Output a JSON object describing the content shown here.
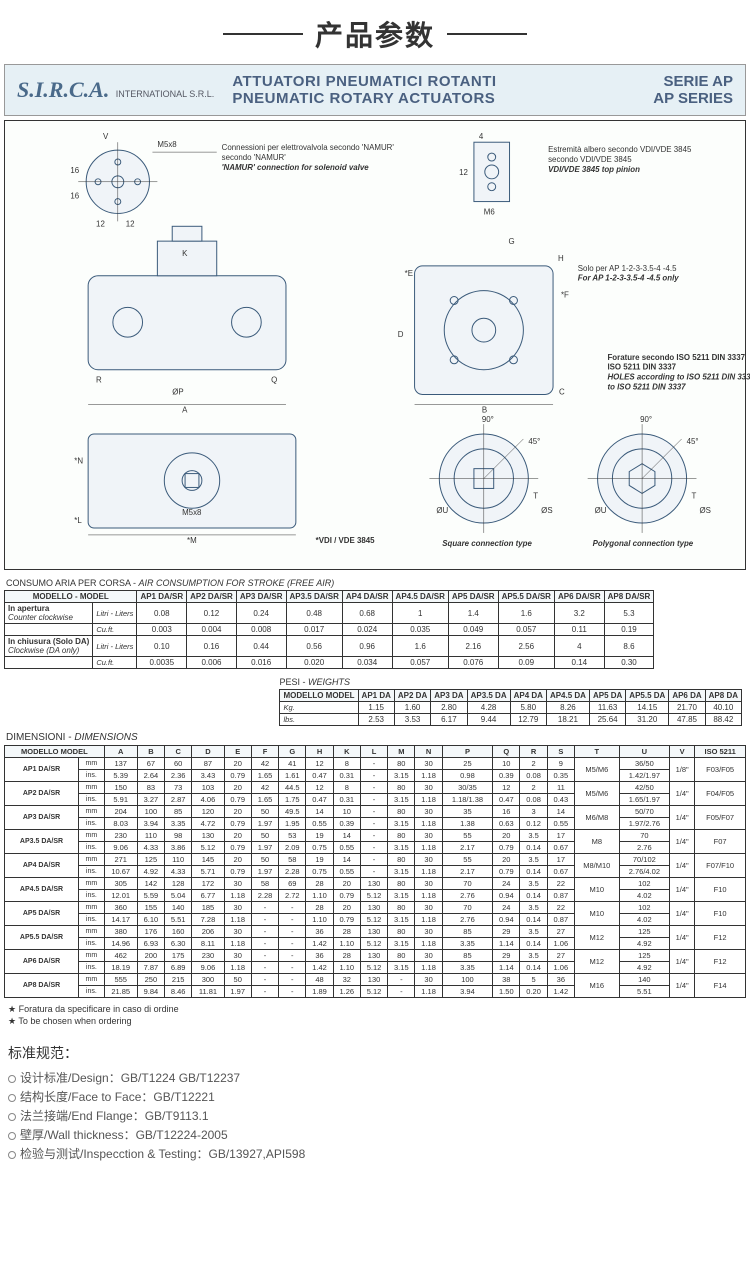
{
  "page_title": "产品参数",
  "header": {
    "logo": "S.I.R.C.A.",
    "logo_sub": "INTERNATIONAL S.R.L.",
    "title_it": "ATTUATORI PNEUMATICI ROTANTI",
    "title_en": "PNEUMATIC ROTARY ACTUATORS",
    "series_it": "SERIE AP",
    "series_en": "AP SERIES"
  },
  "drawing_labels": {
    "namur_it": "Connessioni per elettrovalvola secondo 'NAMUR'",
    "namur_en": "'NAMUR' connection for solenoid valve",
    "vdi_it": "Estremità albero secondo VDI/VDE 3845",
    "vdi_en": "VDI/VDE 3845 top pinion",
    "solo_it": "Solo per AP 1-2-3-3.5-4 -4.5",
    "solo_en": "For AP 1-2-3-3.5-4 -4.5 only",
    "holes_it": "Forature secondo ISO 5211 DIN 3337",
    "holes_en": "HOLES according to ISO 5211 DIN 3337",
    "vdi_vde": "*VDI / VDE 3845",
    "square": "Square connection type",
    "polygonal": "Polygonal connection type",
    "m5x8": "M5x8",
    "m6": "M6"
  },
  "air_section_label_it": "CONSUMO ARIA PER CORSA - ",
  "air_section_label_en": "AIR CONSUMPTION FOR STROKE (FREE AIR)",
  "air_table": {
    "head_model": "MODELLO - MODEL",
    "cols": [
      "AP1 DA/SR",
      "AP2 DA/SR",
      "AP3 DA/SR",
      "AP3.5 DA/SR",
      "AP4 DA/SR",
      "AP4.5 DA/SR",
      "AP5 DA/SR",
      "AP5.5 DA/SR",
      "AP6 DA/SR",
      "AP8 DA/SR"
    ],
    "rows": [
      {
        "label": "In apertura",
        "sub": "Counter clockwise",
        "unit": "Litri - Liters",
        "vals": [
          "0.08",
          "0.12",
          "0.24",
          "0.48",
          "0.68",
          "1",
          "1.4",
          "1.6",
          "3.2",
          "5.3"
        ]
      },
      {
        "label": "",
        "sub": "",
        "unit": "Cu.ft.",
        "vals": [
          "0.003",
          "0.004",
          "0.008",
          "0.017",
          "0.024",
          "0.035",
          "0.049",
          "0.057",
          "0.11",
          "0.19"
        ]
      },
      {
        "label": "In chiusura (Solo DA)",
        "sub": "Clockwise (DA only)",
        "unit": "Litri - Liters",
        "vals": [
          "0.10",
          "0.16",
          "0.44",
          "0.56",
          "0.96",
          "1.6",
          "2.16",
          "2.56",
          "4",
          "8.6"
        ]
      },
      {
        "label": "",
        "sub": "",
        "unit": "Cu.ft.",
        "vals": [
          "0.0035",
          "0.006",
          "0.016",
          "0.020",
          "0.034",
          "0.057",
          "0.076",
          "0.09",
          "0.14",
          "0.30"
        ]
      }
    ]
  },
  "weights_label_it": "PESI - ",
  "weights_label_en": "WEIGHTS",
  "weights_table": {
    "head_model": "MODELLO MODEL",
    "cols": [
      "AP1 DA",
      "AP2 DA",
      "AP3 DA",
      "AP3.5 DA",
      "AP4 DA",
      "AP4.5 DA",
      "AP5 DA",
      "AP5.5 DA",
      "AP6 DA",
      "AP8 DA"
    ],
    "rows": [
      {
        "unit": "Kg.",
        "vals": [
          "1.15",
          "1.60",
          "2.80",
          "4.28",
          "5.80",
          "8.26",
          "11.63",
          "14.15",
          "21.70",
          "40.10"
        ]
      },
      {
        "unit": "lbs.",
        "vals": [
          "2.53",
          "3.53",
          "6.17",
          "9.44",
          "12.79",
          "18.21",
          "25.64",
          "31.20",
          "47.85",
          "88.42"
        ]
      }
    ]
  },
  "dim_label_it": "DIMENSIONI - ",
  "dim_label_en": "DIMENSIONS",
  "dim_table": {
    "head_model": "MODELLO MODEL",
    "cols": [
      "A",
      "B",
      "C",
      "D",
      "E",
      "F",
      "G",
      "H",
      "K",
      "L",
      "M",
      "N",
      "P",
      "Q",
      "R",
      "S",
      "T",
      "U",
      "V",
      "ISO 5211"
    ],
    "rows": [
      {
        "model": "AP1 DA/SR",
        "mm": [
          "137",
          "67",
          "60",
          "87",
          "20",
          "42",
          "41",
          "12",
          "8",
          "-",
          "80",
          "30",
          "25",
          "10",
          "2",
          "9",
          "M5/M6",
          "36/50",
          "1/8\"",
          "F03/F05"
        ],
        "ins": [
          "5.39",
          "2.64",
          "2.36",
          "3.43",
          "0.79",
          "1.65",
          "1.61",
          "0.47",
          "0.31",
          "-",
          "3.15",
          "1.18",
          "0.98",
          "0.39",
          "0.08",
          "0.35",
          "",
          "1.42/1.97",
          "",
          ""
        ]
      },
      {
        "model": "AP2 DA/SR",
        "mm": [
          "150",
          "83",
          "73",
          "103",
          "20",
          "42",
          "44.5",
          "12",
          "8",
          "-",
          "80",
          "30",
          "30/35",
          "12",
          "2",
          "11",
          "M5/M6",
          "42/50",
          "1/4\"",
          "F04/F05"
        ],
        "ins": [
          "5.91",
          "3.27",
          "2.87",
          "4.06",
          "0.79",
          "1.65",
          "1.75",
          "0.47",
          "0.31",
          "-",
          "3.15",
          "1.18",
          "1.18/1.38",
          "0.47",
          "0.08",
          "0.43",
          "",
          "1.65/1.97",
          "",
          ""
        ]
      },
      {
        "model": "AP3 DA/SR",
        "mm": [
          "204",
          "100",
          "85",
          "120",
          "20",
          "50",
          "49.5",
          "14",
          "10",
          "-",
          "80",
          "30",
          "35",
          "16",
          "3",
          "14",
          "M6/M8",
          "50/70",
          "1/4\"",
          "F05/F07"
        ],
        "ins": [
          "8.03",
          "3.94",
          "3.35",
          "4.72",
          "0.79",
          "1.97",
          "1.95",
          "0.55",
          "0.39",
          "-",
          "3.15",
          "1.18",
          "1.38",
          "0.63",
          "0.12",
          "0.55",
          "",
          "1.97/2.76",
          "",
          ""
        ]
      },
      {
        "model": "AP3.5 DA/SR",
        "mm": [
          "230",
          "110",
          "98",
          "130",
          "20",
          "50",
          "53",
          "19",
          "14",
          "-",
          "80",
          "30",
          "55",
          "20",
          "3.5",
          "17",
          "M8",
          "70",
          "1/4\"",
          "F07"
        ],
        "ins": [
          "9.06",
          "4.33",
          "3.86",
          "5.12",
          "0.79",
          "1.97",
          "2.09",
          "0.75",
          "0.55",
          "-",
          "3.15",
          "1.18",
          "2.17",
          "0.79",
          "0.14",
          "0.67",
          "",
          "2.76",
          "",
          ""
        ]
      },
      {
        "model": "AP4 DA/SR",
        "mm": [
          "271",
          "125",
          "110",
          "145",
          "20",
          "50",
          "58",
          "19",
          "14",
          "-",
          "80",
          "30",
          "55",
          "20",
          "3.5",
          "17",
          "M8/M10",
          "70/102",
          "1/4\"",
          "F07/F10"
        ],
        "ins": [
          "10.67",
          "4.92",
          "4.33",
          "5.71",
          "0.79",
          "1.97",
          "2.28",
          "0.75",
          "0.55",
          "-",
          "3.15",
          "1.18",
          "2.17",
          "0.79",
          "0.14",
          "0.67",
          "",
          "2.76/4.02",
          "",
          ""
        ]
      },
      {
        "model": "AP4.5 DA/SR",
        "mm": [
          "305",
          "142",
          "128",
          "172",
          "30",
          "58",
          "69",
          "28",
          "20",
          "130",
          "80",
          "30",
          "70",
          "24",
          "3.5",
          "22",
          "M10",
          "102",
          "1/4\"",
          "F10"
        ],
        "ins": [
          "12.01",
          "5.59",
          "5.04",
          "6.77",
          "1.18",
          "2.28",
          "2.72",
          "1.10",
          "0.79",
          "5.12",
          "3.15",
          "1.18",
          "2.76",
          "0.94",
          "0.14",
          "0.87",
          "",
          "4.02",
          "",
          ""
        ]
      },
      {
        "model": "AP5 DA/SR",
        "mm": [
          "360",
          "155",
          "140",
          "185",
          "30",
          "-",
          "-",
          "28",
          "20",
          "130",
          "80",
          "30",
          "70",
          "24",
          "3.5",
          "22",
          "M10",
          "102",
          "1/4\"",
          "F10"
        ],
        "ins": [
          "14.17",
          "6.10",
          "5.51",
          "7.28",
          "1.18",
          "-",
          "-",
          "1.10",
          "0.79",
          "5.12",
          "3.15",
          "1.18",
          "2.76",
          "0.94",
          "0.14",
          "0.87",
          "",
          "4.02",
          "",
          ""
        ]
      },
      {
        "model": "AP5.5 DA/SR",
        "mm": [
          "380",
          "176",
          "160",
          "206",
          "30",
          "-",
          "-",
          "36",
          "28",
          "130",
          "80",
          "30",
          "85",
          "29",
          "3.5",
          "27",
          "M12",
          "125",
          "1/4\"",
          "F12"
        ],
        "ins": [
          "14.96",
          "6.93",
          "6.30",
          "8.11",
          "1.18",
          "-",
          "-",
          "1.42",
          "1.10",
          "5.12",
          "3.15",
          "1.18",
          "3.35",
          "1.14",
          "0.14",
          "1.06",
          "",
          "4.92",
          "",
          ""
        ]
      },
      {
        "model": "AP6 DA/SR",
        "mm": [
          "462",
          "200",
          "175",
          "230",
          "30",
          "-",
          "-",
          "36",
          "28",
          "130",
          "80",
          "30",
          "85",
          "29",
          "3.5",
          "27",
          "M12",
          "125",
          "1/4\"",
          "F12"
        ],
        "ins": [
          "18.19",
          "7.87",
          "6.89",
          "9.06",
          "1.18",
          "-",
          "-",
          "1.42",
          "1.10",
          "5.12",
          "3.15",
          "1.18",
          "3.35",
          "1.14",
          "0.14",
          "1.06",
          "",
          "4.92",
          "",
          ""
        ]
      },
      {
        "model": "AP8 DA/SR",
        "mm": [
          "555",
          "250",
          "215",
          "300",
          "50",
          "-",
          "-",
          "48",
          "32",
          "130",
          "-",
          "30",
          "100",
          "38",
          "5",
          "36",
          "M16",
          "140",
          "1/4\"",
          "F14"
        ],
        "ins": [
          "21.85",
          "9.84",
          "8.46",
          "11.81",
          "1.97",
          "-",
          "-",
          "1.89",
          "1.26",
          "5.12",
          "-",
          "1.18",
          "3.94",
          "1.50",
          "0.20",
          "1.42",
          "",
          "5.51",
          "",
          ""
        ]
      }
    ]
  },
  "footnotes": {
    "star1": "★ Foratura da specificare in caso di ordine",
    "star2": "★ To be chosen when ordering"
  },
  "spec": {
    "title": "标准规范：",
    "lines": [
      "设计标准/Design：GB/T1224 GB/T12237",
      "结构长度/Face to Face：GB/T12221",
      "法兰接端/End Flange：GB/T9113.1",
      "壁厚/Wall thickness：GB/T12224-2005",
      "检验与测试/Inspecction & Testing：GB/13927,API598"
    ]
  }
}
